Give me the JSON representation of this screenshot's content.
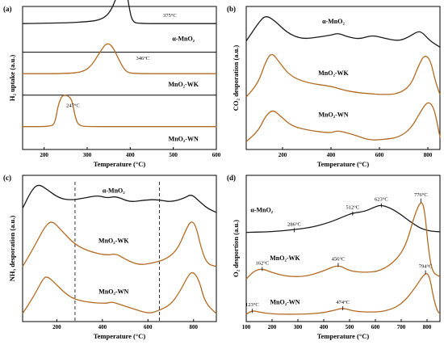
{
  "colors": {
    "black_curve": "#1a1a1a",
    "brown_curve": "#b36a22"
  },
  "chart_data": [
    {
      "panel": "(a)",
      "type": "line",
      "xlabel": "Temperature (°C)",
      "ylabel": "H₂ uptake (a.u.)",
      "xlim": [
        150,
        600
      ],
      "xticks": [
        200,
        300,
        400,
        500,
        600
      ],
      "series": [
        {
          "name": "α-MnO₂",
          "color": "#1a1a1a",
          "peak_label": "375°C",
          "points": [
            [
              150,
              0
            ],
            [
              200,
              0.01
            ],
            [
              250,
              0.02
            ],
            [
              300,
              0.05
            ],
            [
              330,
              0.1
            ],
            [
              350,
              0.25
            ],
            [
              365,
              0.6
            ],
            [
              375,
              1
            ],
            [
              390,
              0.98
            ],
            [
              398,
              0.4
            ],
            [
              405,
              0.05
            ],
            [
              420,
              0
            ],
            [
              500,
              0
            ],
            [
              600,
              0
            ]
          ]
        },
        {
          "name": "MnO₂-WK",
          "color": "#b36a22",
          "peak_label": "346°C",
          "points": [
            [
              150,
              0
            ],
            [
              250,
              0
            ],
            [
              290,
              0.05
            ],
            [
              310,
              0.25
            ],
            [
              330,
              0.7
            ],
            [
              346,
              1
            ],
            [
              360,
              0.85
            ],
            [
              375,
              0.4
            ],
            [
              390,
              0.05
            ],
            [
              410,
              0
            ],
            [
              500,
              0
            ],
            [
              600,
              0
            ]
          ]
        },
        {
          "name": "MnO₂-WN",
          "color": "#b36a22",
          "peak_label": "247°C",
          "points": [
            [
              150,
              0
            ],
            [
              215,
              0
            ],
            [
              225,
              0.1
            ],
            [
              232,
              0.65
            ],
            [
              240,
              0.95
            ],
            [
              247,
              1
            ],
            [
              255,
              0.98
            ],
            [
              265,
              0.85
            ],
            [
              272,
              0.3
            ],
            [
              280,
              0.03
            ],
            [
              300,
              0
            ],
            [
              400,
              0
            ],
            [
              600,
              0
            ]
          ]
        }
      ]
    },
    {
      "panel": "(b)",
      "type": "line",
      "xlabel": "Temperature (°C)",
      "ylabel": "CO₂ desporation (a.u.)",
      "xlim": [
        50,
        850
      ],
      "xticks": [
        200,
        400,
        600,
        800
      ],
      "series": [
        {
          "name": "α-MnO₂",
          "color": "#1a1a1a",
          "points": [
            [
              50,
              0.35
            ],
            [
              100,
              0.8
            ],
            [
              130,
              1
            ],
            [
              170,
              0.85
            ],
            [
              220,
              0.55
            ],
            [
              280,
              0.4
            ],
            [
              350,
              0.45
            ],
            [
              400,
              0.5
            ],
            [
              430,
              0.55
            ],
            [
              470,
              0.45
            ],
            [
              520,
              0.4
            ],
            [
              570,
              0.5
            ],
            [
              620,
              0.42
            ],
            [
              680,
              0.35
            ],
            [
              720,
              0.45
            ],
            [
              760,
              0.6
            ],
            [
              780,
              0.55
            ],
            [
              810,
              0.35
            ],
            [
              850,
              0.2
            ]
          ]
        },
        {
          "name": "MnO₂-WK",
          "color": "#b36a22",
          "points": [
            [
              50,
              0.05
            ],
            [
              100,
              0.35
            ],
            [
              130,
              0.8
            ],
            [
              155,
              1
            ],
            [
              185,
              0.8
            ],
            [
              230,
              0.5
            ],
            [
              300,
              0.35
            ],
            [
              400,
              0.28
            ],
            [
              450,
              0.2
            ],
            [
              500,
              0.15
            ],
            [
              560,
              0.12
            ],
            [
              620,
              0.1
            ],
            [
              680,
              0.12
            ],
            [
              730,
              0.3
            ],
            [
              760,
              0.7
            ],
            [
              785,
              0.95
            ],
            [
              810,
              0.85
            ],
            [
              830,
              0.4
            ],
            [
              850,
              0.1
            ]
          ]
        },
        {
          "name": "MnO₂-WN",
          "color": "#b36a22",
          "points": [
            [
              50,
              0.05
            ],
            [
              100,
              0.3
            ],
            [
              130,
              0.65
            ],
            [
              160,
              0.8
            ],
            [
              190,
              0.65
            ],
            [
              240,
              0.4
            ],
            [
              320,
              0.3
            ],
            [
              400,
              0.25
            ],
            [
              420,
              0.3
            ],
            [
              450,
              0.28
            ],
            [
              500,
              0.2
            ],
            [
              560,
              0.08
            ],
            [
              620,
              0.1
            ],
            [
              680,
              0.15
            ],
            [
              730,
              0.35
            ],
            [
              770,
              0.75
            ],
            [
              800,
              1
            ],
            [
              825,
              0.85
            ],
            [
              845,
              0.3
            ],
            [
              850,
              0.15
            ]
          ]
        }
      ]
    },
    {
      "panel": "(c)",
      "type": "line",
      "xlabel": "Temperature (°C)",
      "ylabel": "NH₃ desporation (a.u.)",
      "xlim": [
        50,
        900
      ],
      "xticks": [
        200,
        400,
        600,
        800
      ],
      "dashed_lines_x": [
        280,
        650
      ],
      "series": [
        {
          "name": "α-MnO₂",
          "color": "#1a1a1a",
          "points": [
            [
              50,
              0.3
            ],
            [
              90,
              0.75
            ],
            [
              120,
              0.9
            ],
            [
              160,
              0.75
            ],
            [
              210,
              0.55
            ],
            [
              260,
              0.5
            ],
            [
              320,
              0.55
            ],
            [
              380,
              0.62
            ],
            [
              420,
              0.55
            ],
            [
              460,
              0.6
            ],
            [
              520,
              0.45
            ],
            [
              580,
              0.5
            ],
            [
              640,
              0.52
            ],
            [
              700,
              0.45
            ],
            [
              760,
              0.55
            ],
            [
              790,
              0.65
            ],
            [
              820,
              0.5
            ],
            [
              860,
              0.3
            ],
            [
              900,
              0.2
            ]
          ]
        },
        {
          "name": "MnO₂-WK",
          "color": "#b36a22",
          "points": [
            [
              50,
              0.05
            ],
            [
              100,
              0.45
            ],
            [
              150,
              0.9
            ],
            [
              180,
              1
            ],
            [
              220,
              0.8
            ],
            [
              280,
              0.5
            ],
            [
              350,
              0.35
            ],
            [
              420,
              0.28
            ],
            [
              460,
              0.32
            ],
            [
              500,
              0.2
            ],
            [
              560,
              0.08
            ],
            [
              620,
              0.12
            ],
            [
              680,
              0.2
            ],
            [
              730,
              0.4
            ],
            [
              770,
              0.85
            ],
            [
              790,
              1
            ],
            [
              810,
              0.9
            ],
            [
              835,
              0.4
            ],
            [
              860,
              0.1
            ],
            [
              900,
              0.05
            ]
          ]
        },
        {
          "name": "MnO₂-WN",
          "color": "#b36a22",
          "points": [
            [
              50,
              0.05
            ],
            [
              100,
              0.45
            ],
            [
              140,
              0.85
            ],
            [
              160,
              0.9
            ],
            [
              200,
              0.7
            ],
            [
              260,
              0.4
            ],
            [
              340,
              0.3
            ],
            [
              420,
              0.28
            ],
            [
              440,
              0.32
            ],
            [
              480,
              0.25
            ],
            [
              540,
              0.15
            ],
            [
              600,
              0.05
            ],
            [
              640,
              0.1
            ],
            [
              700,
              0.25
            ],
            [
              740,
              0.55
            ],
            [
              780,
              0.95
            ],
            [
              800,
              1
            ],
            [
              825,
              0.8
            ],
            [
              850,
              0.3
            ],
            [
              900,
              0.05
            ]
          ]
        }
      ]
    },
    {
      "panel": "(d)",
      "type": "line",
      "xlabel": "Temperature (°C)",
      "ylabel": "O₂ desportion (a.u.)",
      "xlim": [
        100,
        850
      ],
      "xticks": [
        100,
        200,
        300,
        400,
        500,
        600,
        700,
        800
      ],
      "series": [
        {
          "name": "α-MnO₂",
          "color": "#1a1a1a",
          "peaks": [
            {
              "x": 286,
              "label": "286°C"
            },
            {
              "x": 512,
              "label": "512°C"
            },
            {
              "x": 623,
              "label": "623°C"
            }
          ],
          "points": [
            [
              100,
              0
            ],
            [
              200,
              0.02
            ],
            [
              280,
              0.08
            ],
            [
              350,
              0.15
            ],
            [
              420,
              0.3
            ],
            [
              480,
              0.5
            ],
            [
              512,
              0.6
            ],
            [
              560,
              0.65
            ],
            [
              600,
              0.8
            ],
            [
              623,
              0.85
            ],
            [
              660,
              0.75
            ],
            [
              700,
              0.55
            ],
            [
              740,
              0.3
            ],
            [
              780,
              0.1
            ],
            [
              820,
              0.03
            ],
            [
              850,
              0.02
            ]
          ]
        },
        {
          "name": "MnO₂-WK",
          "color": "#b36a22",
          "peaks": [
            {
              "x": 162,
              "label": "162°C"
            },
            {
              "x": 456,
              "label": "456°C"
            },
            {
              "x": 776,
              "label": "776°C"
            }
          ],
          "points": [
            [
              100,
              0.02
            ],
            [
              130,
              0.12
            ],
            [
              162,
              0.15
            ],
            [
              200,
              0.1
            ],
            [
              260,
              0.05
            ],
            [
              330,
              0.05
            ],
            [
              400,
              0.12
            ],
            [
              456,
              0.2
            ],
            [
              500,
              0.12
            ],
            [
              560,
              0.1
            ],
            [
              620,
              0.12
            ],
            [
              680,
              0.25
            ],
            [
              720,
              0.45
            ],
            [
              750,
              0.8
            ],
            [
              776,
              1
            ],
            [
              790,
              0.9
            ],
            [
              805,
              0.4
            ],
            [
              820,
              0.1
            ],
            [
              850,
              0.05
            ]
          ]
        },
        {
          "name": "MnO₂-WN",
          "color": "#b36a22",
          "peaks": [
            {
              "x": 123,
              "label": "123°C"
            },
            {
              "x": 474,
              "label": "474°C"
            },
            {
              "x": 794,
              "label": "794°C"
            }
          ],
          "points": [
            [
              100,
              0.03
            ],
            [
              123,
              0.12
            ],
            [
              150,
              0.08
            ],
            [
              200,
              0.04
            ],
            [
              280,
              0.03
            ],
            [
              380,
              0.05
            ],
            [
              440,
              0.12
            ],
            [
              474,
              0.18
            ],
            [
              520,
              0.1
            ],
            [
              580,
              0.08
            ],
            [
              640,
              0.1
            ],
            [
              700,
              0.25
            ],
            [
              750,
              0.6
            ],
            [
              794,
              1
            ],
            [
              810,
              0.9
            ],
            [
              825,
              0.4
            ],
            [
              840,
              0.1
            ],
            [
              850,
              0.05
            ]
          ]
        }
      ]
    }
  ]
}
